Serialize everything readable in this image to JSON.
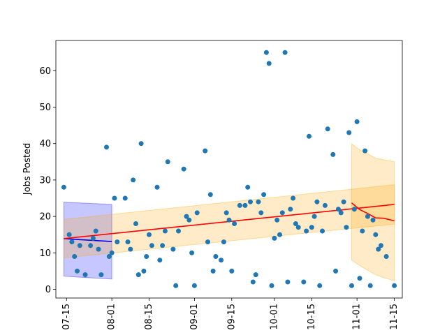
{
  "chart_data": {
    "type": "scatter",
    "title": "",
    "xlabel": "",
    "ylabel": "Jobs Posted",
    "x_axis": "date",
    "xlim": [
      "2023-07-11",
      "2023-11-18"
    ],
    "ylim": [
      -2.4,
      68.3
    ],
    "grid": false,
    "x_ticks": [
      {
        "date": "2023-07-15",
        "label": "07-15"
      },
      {
        "date": "2023-08-01",
        "label": "08-01"
      },
      {
        "date": "2023-08-15",
        "label": "08-15"
      },
      {
        "date": "2023-09-01",
        "label": "09-01"
      },
      {
        "date": "2023-09-15",
        "label": "09-15"
      },
      {
        "date": "2023-10-01",
        "label": "10-01"
      },
      {
        "date": "2023-10-15",
        "label": "10-15"
      },
      {
        "date": "2023-11-01",
        "label": "11-01"
      },
      {
        "date": "2023-11-15",
        "label": "11-15"
      }
    ],
    "y_ticks": [
      0,
      10,
      20,
      30,
      40,
      50,
      60
    ],
    "colors": {
      "points": "#1f77b4",
      "trend": "#ff0000",
      "segment_left": "#0000ff",
      "band_left": "#0000ff",
      "band_main": "#ffa500"
    },
    "points": {
      "x": [
        "2023-07-14",
        "2023-07-16",
        "2023-07-17",
        "2023-07-18",
        "2023-07-19",
        "2023-07-20",
        "2023-07-22",
        "2023-07-24",
        "2023-07-25",
        "2023-07-26",
        "2023-07-27",
        "2023-07-28",
        "2023-07-30",
        "2023-07-31",
        "2023-08-01",
        "2023-08-02",
        "2023-08-03",
        "2023-08-06",
        "2023-08-07",
        "2023-08-08",
        "2023-08-09",
        "2023-08-10",
        "2023-08-11",
        "2023-08-12",
        "2023-08-13",
        "2023-08-14",
        "2023-08-15",
        "2023-08-16",
        "2023-08-18",
        "2023-08-19",
        "2023-08-20",
        "2023-08-21",
        "2023-08-22",
        "2023-08-24",
        "2023-08-25",
        "2023-08-26",
        "2023-08-28",
        "2023-08-29",
        "2023-08-30",
        "2023-08-31",
        "2023-09-01",
        "2023-09-02",
        "2023-09-05",
        "2023-09-06",
        "2023-09-07",
        "2023-09-08",
        "2023-09-09",
        "2023-09-11",
        "2023-09-12",
        "2023-09-13",
        "2023-09-14",
        "2023-09-15",
        "2023-09-16",
        "2023-09-18",
        "2023-09-20",
        "2023-09-21",
        "2023-09-22",
        "2023-09-23",
        "2023-09-24",
        "2023-09-25",
        "2023-09-26",
        "2023-09-27",
        "2023-09-28",
        "2023-09-29",
        "2023-09-30",
        "2023-10-01",
        "2023-10-02",
        "2023-10-03",
        "2023-10-04",
        "2023-10-05",
        "2023-10-06",
        "2023-10-07",
        "2023-10-08",
        "2023-10-09",
        "2023-10-10",
        "2023-10-12",
        "2023-10-13",
        "2023-10-14",
        "2023-10-15",
        "2023-10-16",
        "2023-10-17",
        "2023-10-18",
        "2023-10-19",
        "2023-10-20",
        "2023-10-21",
        "2023-10-23",
        "2023-10-24",
        "2023-10-25",
        "2023-10-26",
        "2023-10-27",
        "2023-10-28",
        "2023-10-29",
        "2023-10-30",
        "2023-10-31",
        "2023-11-01",
        "2023-11-02",
        "2023-11-03",
        "2023-11-04",
        "2023-11-05",
        "2023-11-06",
        "2023-11-07",
        "2023-11-08",
        "2023-11-09",
        "2023-11-10",
        "2023-11-12",
        "2023-11-15"
      ],
      "y": [
        28,
        15,
        13,
        9,
        5,
        12,
        4,
        12,
        14,
        16,
        11,
        4,
        39,
        9,
        10,
        25,
        13,
        25,
        13,
        11,
        30,
        18,
        4,
        40,
        5,
        9,
        15,
        12,
        28,
        8,
        12,
        16,
        35,
        11,
        1,
        16,
        33,
        20,
        19,
        10,
        1,
        21,
        38,
        13,
        26,
        5,
        9,
        8,
        13,
        21,
        19,
        5,
        18,
        23,
        23,
        28,
        24,
        2,
        4,
        24,
        21,
        26,
        65,
        62,
        1,
        14,
        19,
        15,
        21,
        65,
        2,
        22,
        25,
        18,
        17,
        2,
        16,
        42,
        17,
        20,
        24,
        1,
        16,
        23,
        44,
        37,
        5,
        22,
        21,
        24,
        17,
        43,
        1,
        22,
        46,
        3,
        16,
        38,
        20,
        1,
        19,
        15,
        11,
        12,
        9,
        1
      ]
    },
    "series": [
      {
        "x": [
          "2023-07-14",
          "2023-08-01"
        ],
        "y": [
          13.9,
          13.1
        ],
        "band_lower": [
          3.6,
          2.8
        ],
        "band_upper": [
          23.9,
          23.3
        ]
      },
      {
        "x": [
          "2023-07-14",
          "2023-11-15"
        ],
        "y": [
          13.9,
          23.3
        ],
        "band_lower": [
          8.6,
          17.9
        ],
        "band_upper": [
          19.2,
          28.7
        ]
      },
      {
        "x": [
          "2023-10-30",
          "2023-11-02",
          "2023-11-05",
          "2023-11-08",
          "2023-11-11",
          "2023-11-15"
        ],
        "y": [
          23.7,
          21.9,
          20.8,
          19.6,
          19.5,
          18.8
        ],
        "band_lower": [
          8.0,
          6.5,
          5.2,
          4.0,
          3.2,
          2.3
        ],
        "band_upper": [
          39.9,
          38.3,
          37.2,
          36.0,
          35.6,
          35.0
        ]
      }
    ]
  }
}
